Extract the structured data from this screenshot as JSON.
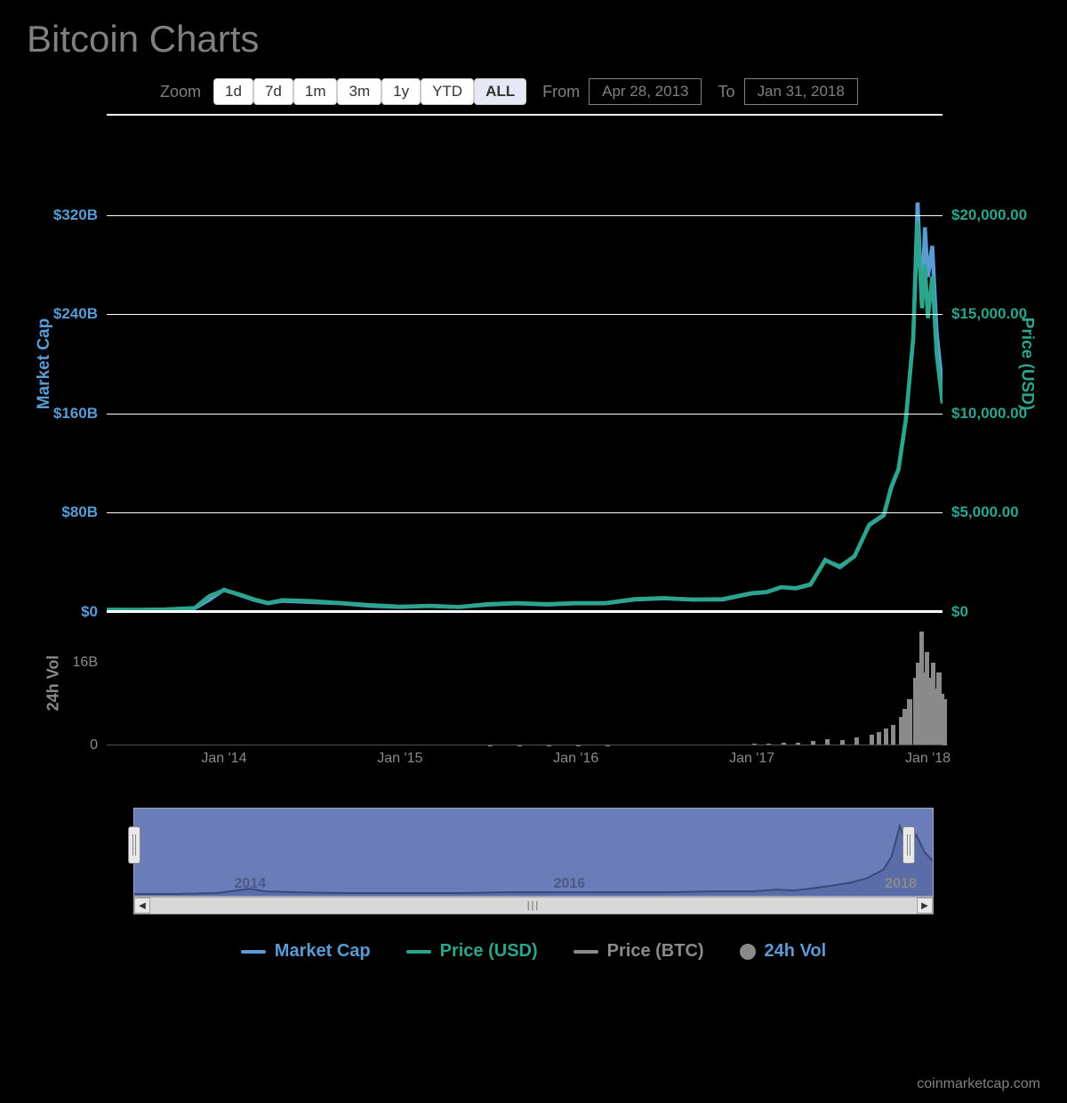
{
  "title": "Bitcoin Charts",
  "controls": {
    "zoom_label": "Zoom",
    "buttons": [
      {
        "label": "1d",
        "active": false
      },
      {
        "label": "7d",
        "active": false
      },
      {
        "label": "1m",
        "active": false
      },
      {
        "label": "3m",
        "active": false
      },
      {
        "label": "1y",
        "active": false
      },
      {
        "label": "YTD",
        "active": false
      },
      {
        "label": "ALL",
        "active": true
      }
    ],
    "from_label": "From",
    "from_value": "Apr 28, 2013",
    "to_label": "To",
    "to_value": "Jan 31, 2018"
  },
  "chart": {
    "type": "line",
    "background_color": "#000000",
    "grid_color": "#ffffff",
    "left_axis": {
      "title": "Market Cap",
      "color": "#5b9bd5",
      "min": 0,
      "max": 400,
      "ticks": [
        {
          "value": 0,
          "label": "$0"
        },
        {
          "value": 80,
          "label": "$80B"
        },
        {
          "value": 160,
          "label": "$160B"
        },
        {
          "value": 240,
          "label": "$240B"
        },
        {
          "value": 320,
          "label": "$320B"
        }
      ]
    },
    "right_axis": {
      "title": "Price (USD)",
      "color": "#2ca58d",
      "min": 0,
      "max": 25000,
      "ticks": [
        {
          "value": 0,
          "label": "$0"
        },
        {
          "value": 5000,
          "label": "$5,000.00"
        },
        {
          "value": 10000,
          "label": "$10,000.00"
        },
        {
          "value": 15000,
          "label": "$15,000.00"
        },
        {
          "value": 20000,
          "label": "$20,000.00"
        }
      ]
    },
    "x_axis": {
      "min": 0,
      "max": 57,
      "ticks": [
        {
          "value": 8,
          "label": "Jan '14"
        },
        {
          "value": 20,
          "label": "Jan '15"
        },
        {
          "value": 32,
          "label": "Jan '16"
        },
        {
          "value": 44,
          "label": "Jan '17"
        },
        {
          "value": 56,
          "label": "Jan '18"
        }
      ]
    },
    "series": [
      {
        "name": "Market Cap",
        "color": "#5b9bd5",
        "stroke_width": 2.5,
        "axis": "left",
        "data": [
          [
            0,
            1.5
          ],
          [
            2,
            1.5
          ],
          [
            4,
            2
          ],
          [
            6,
            3
          ],
          [
            7,
            10
          ],
          [
            8,
            18
          ],
          [
            9,
            14
          ],
          [
            10,
            10
          ],
          [
            11,
            7
          ],
          [
            12,
            9
          ],
          [
            14,
            8
          ],
          [
            16,
            7
          ],
          [
            18,
            5
          ],
          [
            20,
            4
          ],
          [
            22,
            5
          ],
          [
            24,
            4
          ],
          [
            26,
            6
          ],
          [
            28,
            7
          ],
          [
            30,
            6
          ],
          [
            32,
            7
          ],
          [
            34,
            7
          ],
          [
            36,
            10
          ],
          [
            38,
            11
          ],
          [
            40,
            10
          ],
          [
            42,
            10
          ],
          [
            44,
            15
          ],
          [
            45,
            16
          ],
          [
            46,
            20
          ],
          [
            47,
            19
          ],
          [
            48,
            22
          ],
          [
            49,
            42
          ],
          [
            50,
            36
          ],
          [
            51,
            45
          ],
          [
            52,
            70
          ],
          [
            53,
            78
          ],
          [
            53.5,
            100
          ],
          [
            54,
            115
          ],
          [
            54.5,
            155
          ],
          [
            55,
            220
          ],
          [
            55.3,
            330
          ],
          [
            55.6,
            245
          ],
          [
            55.8,
            310
          ],
          [
            56,
            270
          ],
          [
            56.3,
            295
          ],
          [
            56.6,
            225
          ],
          [
            57,
            180
          ]
        ]
      },
      {
        "name": "Price (USD)",
        "color": "#2ca58d",
        "stroke_width": 2.5,
        "axis": "right",
        "data": [
          [
            0,
            120
          ],
          [
            2,
            110
          ],
          [
            4,
            130
          ],
          [
            6,
            200
          ],
          [
            7,
            800
          ],
          [
            8,
            1100
          ],
          [
            9,
            900
          ],
          [
            10,
            650
          ],
          [
            11,
            450
          ],
          [
            12,
            600
          ],
          [
            14,
            550
          ],
          [
            16,
            450
          ],
          [
            18,
            350
          ],
          [
            20,
            270
          ],
          [
            22,
            300
          ],
          [
            24,
            250
          ],
          [
            26,
            400
          ],
          [
            28,
            450
          ],
          [
            30,
            400
          ],
          [
            32,
            450
          ],
          [
            34,
            450
          ],
          [
            36,
            650
          ],
          [
            38,
            700
          ],
          [
            40,
            620
          ],
          [
            42,
            650
          ],
          [
            44,
            950
          ],
          [
            45,
            1000
          ],
          [
            46,
            1250
          ],
          [
            47,
            1200
          ],
          [
            48,
            1400
          ],
          [
            49,
            2600
          ],
          [
            50,
            2300
          ],
          [
            51,
            2800
          ],
          [
            52,
            4400
          ],
          [
            53,
            4900
          ],
          [
            53.5,
            6300
          ],
          [
            54,
            7200
          ],
          [
            54.5,
            9700
          ],
          [
            55,
            13800
          ],
          [
            55.3,
            19700
          ],
          [
            55.6,
            15300
          ],
          [
            55.8,
            17500
          ],
          [
            56,
            14800
          ],
          [
            56.3,
            16900
          ],
          [
            56.6,
            13000
          ],
          [
            57,
            10500
          ]
        ]
      }
    ]
  },
  "volume": {
    "axis_title": "24h Vol",
    "color": "#8a8a8a",
    "max": 24,
    "ticks": [
      {
        "value": 0,
        "label": "0"
      },
      {
        "value": 16,
        "label": "16B"
      }
    ],
    "data": [
      [
        26,
        0.05
      ],
      [
        28,
        0.05
      ],
      [
        30,
        0.05
      ],
      [
        32,
        0.08
      ],
      [
        34,
        0.08
      ],
      [
        36,
        0.12
      ],
      [
        38,
        0.15
      ],
      [
        40,
        0.15
      ],
      [
        42,
        0.2
      ],
      [
        44,
        0.3
      ],
      [
        45,
        0.4
      ],
      [
        46,
        0.5
      ],
      [
        47,
        0.6
      ],
      [
        48,
        0.8
      ],
      [
        49,
        1.2
      ],
      [
        50,
        1.0
      ],
      [
        51,
        1.5
      ],
      [
        52,
        2.0
      ],
      [
        52.5,
        2.5
      ],
      [
        53,
        3.2
      ],
      [
        53.5,
        4.0
      ],
      [
        54,
        5.5
      ],
      [
        54.3,
        7.0
      ],
      [
        54.6,
        9.0
      ],
      [
        55,
        13.0
      ],
      [
        55.2,
        16.0
      ],
      [
        55.4,
        22.0
      ],
      [
        55.6,
        14.0
      ],
      [
        55.8,
        18.0
      ],
      [
        56,
        13.0
      ],
      [
        56.2,
        16.0
      ],
      [
        56.4,
        11.0
      ],
      [
        56.6,
        14.0
      ],
      [
        56.8,
        10.0
      ],
      [
        57,
        9.0
      ]
    ]
  },
  "navigator": {
    "background_color": "#6a7db8",
    "line_color": "#3a4a7a",
    "years": [
      {
        "value": 14.5,
        "label": "2014",
        "outside": false
      },
      {
        "value": 54.5,
        "label": "2016",
        "outside": false
      },
      {
        "value": 96,
        "label": "2018",
        "outside": true
      }
    ],
    "mini_data": [
      [
        0,
        2
      ],
      [
        5,
        2
      ],
      [
        10,
        3
      ],
      [
        14,
        8
      ],
      [
        16,
        5
      ],
      [
        20,
        4
      ],
      [
        25,
        3
      ],
      [
        30,
        3
      ],
      [
        35,
        3
      ],
      [
        40,
        3
      ],
      [
        45,
        4
      ],
      [
        50,
        4
      ],
      [
        55,
        4
      ],
      [
        60,
        4
      ],
      [
        65,
        4
      ],
      [
        70,
        5
      ],
      [
        75,
        5
      ],
      [
        78,
        7
      ],
      [
        80,
        6
      ],
      [
        82,
        8
      ],
      [
        85,
        12
      ],
      [
        87,
        15
      ],
      [
        89,
        20
      ],
      [
        91,
        30
      ],
      [
        92,
        45
      ],
      [
        93,
        80
      ],
      [
        94,
        55
      ],
      [
        95,
        70
      ],
      [
        96,
        50
      ],
      [
        97,
        40
      ]
    ],
    "handle_left_pct": 0,
    "handle_right_pct": 97
  },
  "legend": {
    "items": [
      {
        "label": "Market Cap",
        "color": "#5b9bd5",
        "text_color": "#5b9bd5",
        "shape": "line"
      },
      {
        "label": "Price (USD)",
        "color": "#2ca58d",
        "text_color": "#2ca58d",
        "shape": "line"
      },
      {
        "label": "Price (BTC)",
        "color": "#8a8a8a",
        "text_color": "#8a8a8a",
        "shape": "line"
      },
      {
        "label": "24h Vol",
        "color": "#8a8a8a",
        "text_color": "#5b9bd5",
        "shape": "dot"
      }
    ]
  },
  "attribution": "coinmarketcap.com"
}
